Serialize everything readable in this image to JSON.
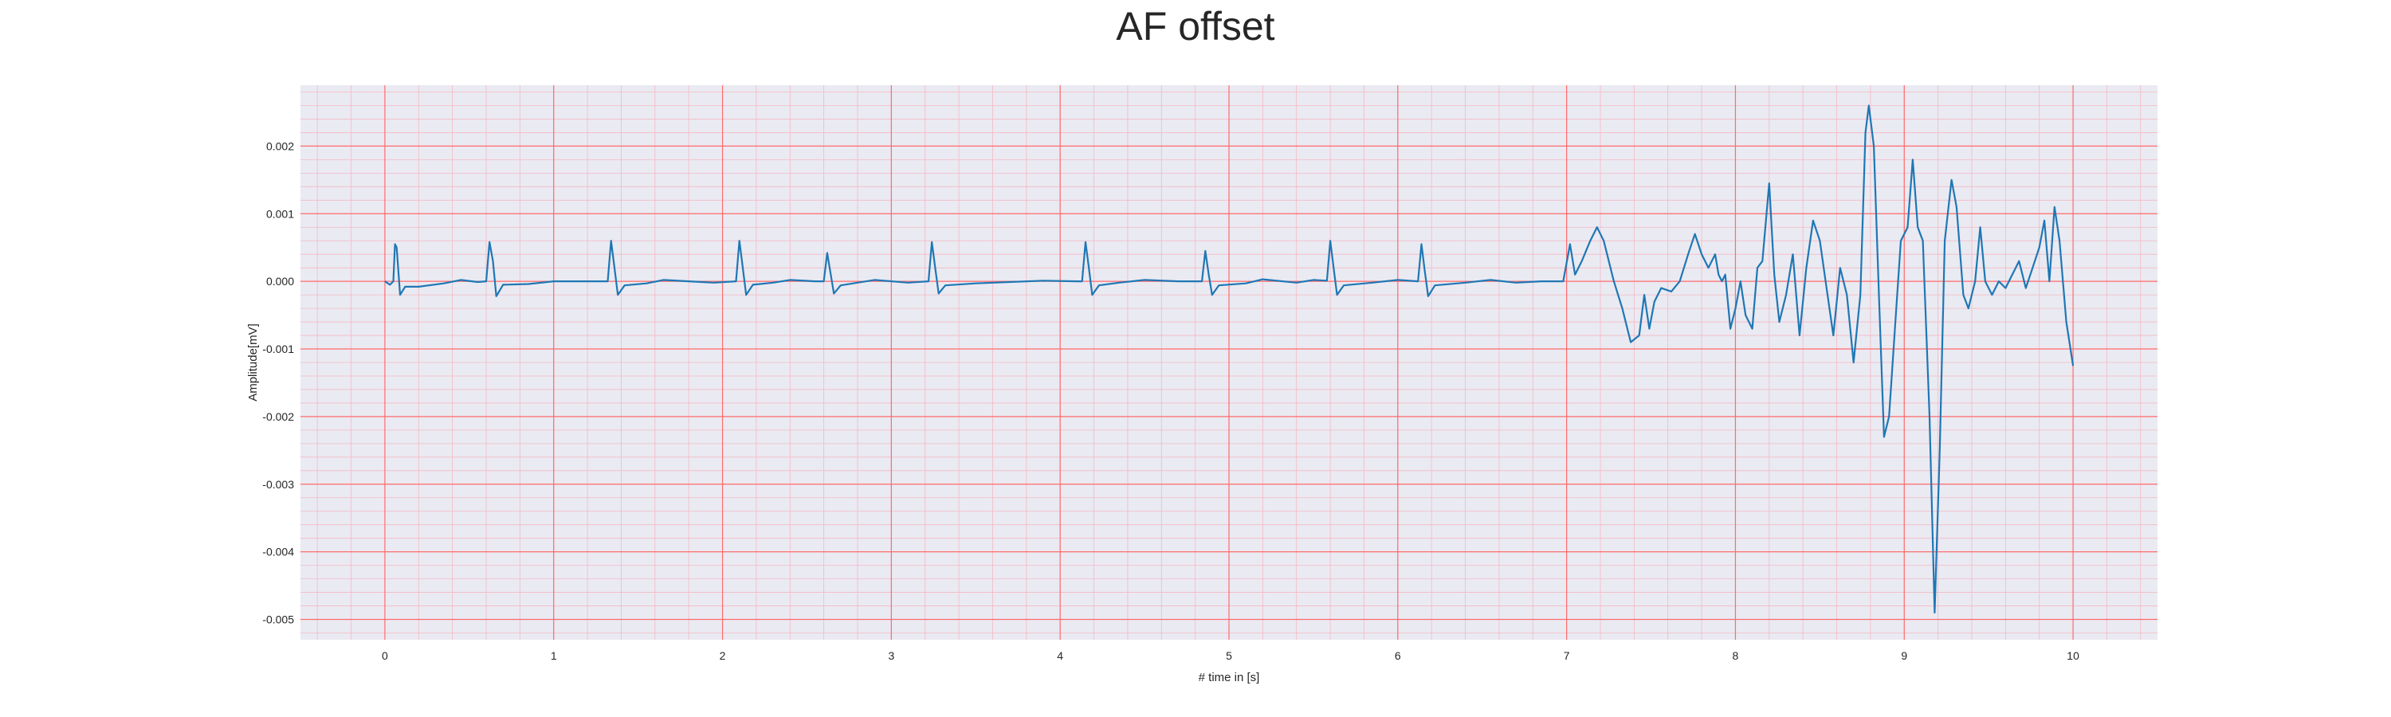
{
  "chart_data": {
    "type": "line",
    "title": "AF offset",
    "xlabel": "# time in [s]",
    "ylabel": "Amplitude[mV]",
    "xlim": [
      -0.5,
      10.5
    ],
    "ylim": [
      -0.0053,
      0.0029
    ],
    "xticks": [
      0,
      1,
      2,
      3,
      4,
      5,
      6,
      7,
      8,
      9,
      10
    ],
    "xtick_labels": [
      "0",
      "1",
      "2",
      "3",
      "4",
      "5",
      "6",
      "7",
      "8",
      "9",
      "10"
    ],
    "yticks": [
      0.002,
      0.001,
      0.0,
      -0.001,
      -0.002,
      -0.003,
      -0.004,
      -0.005
    ],
    "ytick_labels": [
      "0.002",
      "0.001",
      "0.000",
      "-0.001",
      "-0.002",
      "-0.003",
      "-0.004",
      "-0.005"
    ],
    "grid": "ECG paper grid, major red lines at ticks, minor pink lines",
    "colors": {
      "line": "#1f77b4",
      "background": "#eaeaf2",
      "major_grid": "#ff6b6b",
      "minor_grid": "#f4b8c4"
    },
    "series": [
      {
        "points": [
          [
            0.0,
            0.0
          ],
          [
            0.03,
            -5e-05
          ],
          [
            0.05,
            0.0
          ],
          [
            0.06,
            0.00055
          ],
          [
            0.07,
            0.0005
          ],
          [
            0.09,
            -0.0002
          ],
          [
            0.12,
            -8e-05
          ],
          [
            0.2,
            -8e-05
          ],
          [
            0.35,
            -3e-05
          ],
          [
            0.45,
            2e-05
          ],
          [
            0.55,
            -1e-05
          ],
          [
            0.6,
            0.0
          ],
          [
            0.62,
            0.00058
          ],
          [
            0.64,
            0.0003
          ],
          [
            0.66,
            -0.00022
          ],
          [
            0.7,
            -5e-05
          ],
          [
            0.85,
            -4e-05
          ],
          [
            1.0,
            0.0
          ],
          [
            1.2,
            0.0
          ],
          [
            1.32,
            0.0
          ],
          [
            1.34,
            0.0006
          ],
          [
            1.36,
            0.0002
          ],
          [
            1.38,
            -0.0002
          ],
          [
            1.42,
            -6e-05
          ],
          [
            1.55,
            -3e-05
          ],
          [
            1.65,
            2e-05
          ],
          [
            1.8,
            0.0
          ],
          [
            1.95,
            -2e-05
          ],
          [
            2.08,
            0.0
          ],
          [
            2.1,
            0.0006
          ],
          [
            2.12,
            0.0002
          ],
          [
            2.14,
            -0.0002
          ],
          [
            2.18,
            -5e-05
          ],
          [
            2.3,
            -2e-05
          ],
          [
            2.4,
            2e-05
          ],
          [
            2.55,
            0.0
          ],
          [
            2.6,
            0.0
          ],
          [
            2.62,
            0.00042
          ],
          [
            2.64,
            0.00012
          ],
          [
            2.66,
            -0.00018
          ],
          [
            2.7,
            -6e-05
          ],
          [
            2.9,
            2e-05
          ],
          [
            3.1,
            -2e-05
          ],
          [
            3.22,
            0.0
          ],
          [
            3.24,
            0.00058
          ],
          [
            3.26,
            0.0002
          ],
          [
            3.28,
            -0.00018
          ],
          [
            3.32,
            -6e-05
          ],
          [
            3.5,
            -3e-05
          ],
          [
            3.7,
            -1e-05
          ],
          [
            3.9,
            1e-05
          ],
          [
            4.1,
            0.0
          ],
          [
            4.13,
            0.0
          ],
          [
            4.15,
            0.00058
          ],
          [
            4.17,
            0.0002
          ],
          [
            4.19,
            -0.0002
          ],
          [
            4.23,
            -6e-05
          ],
          [
            4.35,
            -2e-05
          ],
          [
            4.5,
            2e-05
          ],
          [
            4.7,
            0.0
          ],
          [
            4.84,
            0.0
          ],
          [
            4.86,
            0.00045
          ],
          [
            4.88,
            0.0001
          ],
          [
            4.9,
            -0.0002
          ],
          [
            4.94,
            -6e-05
          ],
          [
            5.1,
            -3e-05
          ],
          [
            5.2,
            3e-05
          ],
          [
            5.4,
            -2e-05
          ],
          [
            5.5,
            2e-05
          ],
          [
            5.58,
            1e-05
          ],
          [
            5.6,
            0.0006
          ],
          [
            5.62,
            0.0002
          ],
          [
            5.64,
            -0.0002
          ],
          [
            5.68,
            -6e-05
          ],
          [
            5.85,
            -2e-05
          ],
          [
            6.0,
            2e-05
          ],
          [
            6.12,
            0.0
          ],
          [
            6.14,
            0.00055
          ],
          [
            6.16,
            0.00015
          ],
          [
            6.18,
            -0.00022
          ],
          [
            6.22,
            -6e-05
          ],
          [
            6.4,
            -2e-05
          ],
          [
            6.55,
            2e-05
          ],
          [
            6.7,
            -2e-05
          ],
          [
            6.85,
            0.0
          ],
          [
            6.98,
            0.0
          ],
          [
            7.02,
            0.00055
          ],
          [
            7.05,
            0.0001
          ],
          [
            7.09,
            0.0003
          ],
          [
            7.14,
            0.0006
          ],
          [
            7.18,
            0.0008
          ],
          [
            7.22,
            0.0006
          ],
          [
            7.28,
            0.0
          ],
          [
            7.33,
            -0.0004
          ],
          [
            7.38,
            -0.0009
          ],
          [
            7.43,
            -0.0008
          ],
          [
            7.46,
            -0.0002
          ],
          [
            7.49,
            -0.0007
          ],
          [
            7.52,
            -0.0003
          ],
          [
            7.56,
            -0.0001
          ],
          [
            7.62,
            -0.00015
          ],
          [
            7.67,
            0.0
          ],
          [
            7.72,
            0.0004
          ],
          [
            7.76,
            0.0007
          ],
          [
            7.8,
            0.0004
          ],
          [
            7.84,
            0.0002
          ],
          [
            7.88,
            0.0004
          ],
          [
            7.9,
            0.0001
          ],
          [
            7.92,
            0.0
          ],
          [
            7.94,
            0.0001
          ],
          [
            7.97,
            -0.0007
          ],
          [
            8.0,
            -0.0004
          ],
          [
            8.03,
            0.0
          ],
          [
            8.06,
            -0.0005
          ],
          [
            8.1,
            -0.0007
          ],
          [
            8.13,
            0.0002
          ],
          [
            8.16,
            0.0003
          ],
          [
            8.2,
            0.00145
          ],
          [
            8.23,
            0.0001
          ],
          [
            8.26,
            -0.0006
          ],
          [
            8.3,
            -0.0002
          ],
          [
            8.34,
            0.0004
          ],
          [
            8.38,
            -0.0008
          ],
          [
            8.42,
            0.0002
          ],
          [
            8.46,
            0.0009
          ],
          [
            8.5,
            0.0006
          ],
          [
            8.54,
            -0.0001
          ],
          [
            8.58,
            -0.0008
          ],
          [
            8.62,
            0.0002
          ],
          [
            8.66,
            -0.0002
          ],
          [
            8.7,
            -0.0012
          ],
          [
            8.74,
            -0.0002
          ],
          [
            8.77,
            0.0022
          ],
          [
            8.79,
            0.0026
          ],
          [
            8.82,
            0.002
          ],
          [
            8.85,
            -0.0002
          ],
          [
            8.88,
            -0.0023
          ],
          [
            8.91,
            -0.002
          ],
          [
            8.95,
            -0.0005
          ],
          [
            8.98,
            0.0006
          ],
          [
            9.02,
            0.0008
          ],
          [
            9.05,
            0.0018
          ],
          [
            9.08,
            0.0008
          ],
          [
            9.11,
            0.0006
          ],
          [
            9.15,
            -0.002
          ],
          [
            9.18,
            -0.0049
          ],
          [
            9.21,
            -0.0025
          ],
          [
            9.24,
            0.0006
          ],
          [
            9.28,
            0.0015
          ],
          [
            9.31,
            0.0011
          ],
          [
            9.35,
            -0.0002
          ],
          [
            9.38,
            -0.0004
          ],
          [
            9.42,
            0.0
          ],
          [
            9.45,
            0.0008
          ],
          [
            9.48,
            0.0
          ],
          [
            9.52,
            -0.0002
          ],
          [
            9.56,
            0.0
          ],
          [
            9.6,
            -0.0001
          ],
          [
            9.64,
            0.0001
          ],
          [
            9.68,
            0.0003
          ],
          [
            9.72,
            -0.0001
          ],
          [
            9.76,
            0.0002
          ],
          [
            9.8,
            0.0005
          ],
          [
            9.83,
            0.0009
          ],
          [
            9.86,
            0.0
          ],
          [
            9.89,
            0.0011
          ],
          [
            9.92,
            0.0006
          ],
          [
            9.96,
            -0.0006
          ],
          [
            10.0,
            -0.00125
          ]
        ]
      }
    ]
  }
}
